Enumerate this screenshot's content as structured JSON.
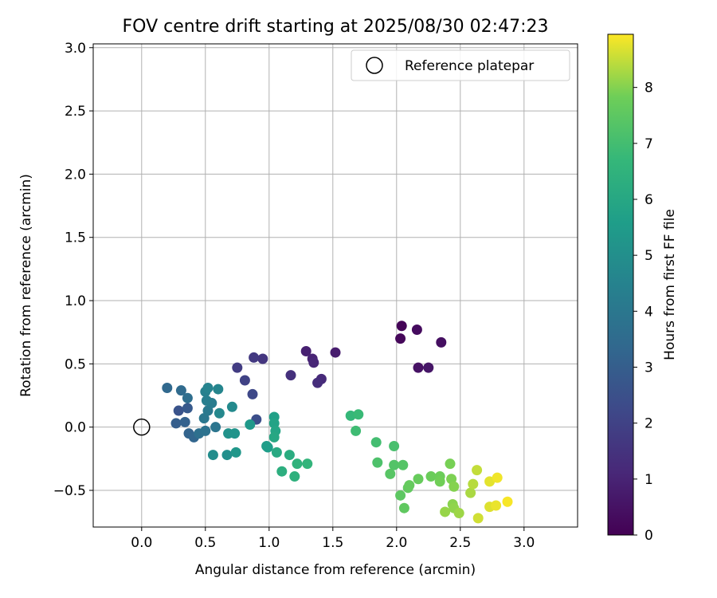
{
  "chart_data": {
    "type": "scatter",
    "title": "FOV centre drift starting at 2025/08/30 02:47:23",
    "xlabel": "Angular distance from reference (arcmin)",
    "ylabel": "Rotation from reference (arcmin)",
    "xlim": [
      -0.38,
      3.42
    ],
    "ylim": [
      -0.79,
      3.03
    ],
    "xticks": [
      0.0,
      0.5,
      1.0,
      1.5,
      2.0,
      2.5,
      3.0
    ],
    "xtick_labels": [
      "0.0",
      "0.5",
      "1.0",
      "1.5",
      "2.0",
      "2.5",
      "3.0"
    ],
    "yticks": [
      -0.5,
      0.0,
      0.5,
      1.0,
      1.5,
      2.0,
      2.5,
      3.0
    ],
    "ytick_labels": [
      "−0.5",
      "0.0",
      "0.5",
      "1.0",
      "1.5",
      "2.0",
      "2.5",
      "3.0"
    ],
    "grid": true,
    "legend": {
      "position": "top-right",
      "label": "Reference platepar"
    },
    "reference_point": {
      "x": 0.0,
      "y": 0.0
    },
    "colorbar": {
      "label": "Hours from first FF file",
      "min": 0,
      "max": 8.95,
      "ticks": [
        0,
        1,
        2,
        3,
        4,
        5,
        6,
        7,
        8
      ],
      "tick_labels": [
        "0",
        "1",
        "2",
        "3",
        "4",
        "5",
        "6",
        "7",
        "8"
      ],
      "colormap": "viridis"
    },
    "points": [
      {
        "x": 2.04,
        "y": 0.8,
        "c": 0.1
      },
      {
        "x": 2.03,
        "y": 0.7,
        "c": 0.2
      },
      {
        "x": 2.16,
        "y": 0.77,
        "c": 0.3
      },
      {
        "x": 2.35,
        "y": 0.67,
        "c": 0.4
      },
      {
        "x": 2.17,
        "y": 0.47,
        "c": 0.5
      },
      {
        "x": 2.25,
        "y": 0.47,
        "c": 0.6
      },
      {
        "x": 1.52,
        "y": 0.59,
        "c": 0.8
      },
      {
        "x": 1.29,
        "y": 0.6,
        "c": 0.9
      },
      {
        "x": 1.34,
        "y": 0.54,
        "c": 1.0
      },
      {
        "x": 1.35,
        "y": 0.51,
        "c": 1.1
      },
      {
        "x": 1.41,
        "y": 0.38,
        "c": 1.2
      },
      {
        "x": 1.38,
        "y": 0.35,
        "c": 1.3
      },
      {
        "x": 1.17,
        "y": 0.41,
        "c": 1.4
      },
      {
        "x": 0.95,
        "y": 0.54,
        "c": 1.6
      },
      {
        "x": 0.88,
        "y": 0.55,
        "c": 1.7
      },
      {
        "x": 0.75,
        "y": 0.47,
        "c": 1.8
      },
      {
        "x": 0.81,
        "y": 0.37,
        "c": 2.0
      },
      {
        "x": 0.87,
        "y": 0.26,
        "c": 2.2
      },
      {
        "x": 0.9,
        "y": 0.06,
        "c": 2.4
      },
      {
        "x": 0.29,
        "y": 0.13,
        "c": 2.6
      },
      {
        "x": 0.36,
        "y": 0.15,
        "c": 2.8
      },
      {
        "x": 0.27,
        "y": 0.03,
        "c": 3.0
      },
      {
        "x": 0.34,
        "y": 0.04,
        "c": 3.1
      },
      {
        "x": 0.37,
        "y": -0.05,
        "c": 3.2
      },
      {
        "x": 0.41,
        "y": -0.08,
        "c": 3.3
      },
      {
        "x": 0.2,
        "y": 0.31,
        "c": 3.4
      },
      {
        "x": 0.31,
        "y": 0.29,
        "c": 3.5
      },
      {
        "x": 0.36,
        "y": 0.23,
        "c": 3.6
      },
      {
        "x": 0.45,
        "y": -0.05,
        "c": 3.7
      },
      {
        "x": 0.5,
        "y": -0.03,
        "c": 3.8
      },
      {
        "x": 0.58,
        "y": 0.0,
        "c": 3.9
      },
      {
        "x": 0.49,
        "y": 0.07,
        "c": 4.0
      },
      {
        "x": 0.52,
        "y": 0.13,
        "c": 4.1
      },
      {
        "x": 0.55,
        "y": 0.19,
        "c": 4.2
      },
      {
        "x": 0.51,
        "y": 0.21,
        "c": 4.3
      },
      {
        "x": 0.5,
        "y": 0.28,
        "c": 4.4
      },
      {
        "x": 0.52,
        "y": 0.31,
        "c": 4.5
      },
      {
        "x": 0.6,
        "y": 0.3,
        "c": 4.6
      },
      {
        "x": 0.61,
        "y": 0.11,
        "c": 4.7
      },
      {
        "x": 0.71,
        "y": 0.16,
        "c": 4.8
      },
      {
        "x": 0.56,
        "y": -0.22,
        "c": 4.9
      },
      {
        "x": 0.67,
        "y": -0.22,
        "c": 5.0
      },
      {
        "x": 0.68,
        "y": -0.05,
        "c": 5.1
      },
      {
        "x": 0.73,
        "y": -0.05,
        "c": 5.2
      },
      {
        "x": 0.74,
        "y": -0.2,
        "c": 5.3
      },
      {
        "x": 0.85,
        "y": 0.02,
        "c": 5.4
      },
      {
        "x": 0.98,
        "y": -0.15,
        "c": 5.5
      },
      {
        "x": 0.99,
        "y": -0.16,
        "c": 5.6
      },
      {
        "x": 1.04,
        "y": 0.08,
        "c": 5.7
      },
      {
        "x": 1.04,
        "y": 0.03,
        "c": 5.8
      },
      {
        "x": 1.05,
        "y": -0.03,
        "c": 5.9
      },
      {
        "x": 1.04,
        "y": -0.08,
        "c": 6.0
      },
      {
        "x": 1.06,
        "y": -0.2,
        "c": 6.1
      },
      {
        "x": 1.16,
        "y": -0.22,
        "c": 6.2
      },
      {
        "x": 1.1,
        "y": -0.35,
        "c": 6.3
      },
      {
        "x": 1.2,
        "y": -0.39,
        "c": 6.4
      },
      {
        "x": 1.22,
        "y": -0.29,
        "c": 6.5
      },
      {
        "x": 1.3,
        "y": -0.29,
        "c": 6.6
      },
      {
        "x": 1.64,
        "y": 0.09,
        "c": 6.7
      },
      {
        "x": 1.7,
        "y": 0.1,
        "c": 6.8
      },
      {
        "x": 1.68,
        "y": -0.03,
        "c": 6.9
      },
      {
        "x": 1.84,
        "y": -0.12,
        "c": 7.0
      },
      {
        "x": 1.98,
        "y": -0.15,
        "c": 7.1
      },
      {
        "x": 1.85,
        "y": -0.28,
        "c": 7.2
      },
      {
        "x": 1.98,
        "y": -0.3,
        "c": 7.3
      },
      {
        "x": 2.05,
        "y": -0.3,
        "c": 7.35
      },
      {
        "x": 1.95,
        "y": -0.37,
        "c": 7.4
      },
      {
        "x": 2.03,
        "y": -0.54,
        "c": 7.5
      },
      {
        "x": 2.06,
        "y": -0.64,
        "c": 7.55
      },
      {
        "x": 2.09,
        "y": -0.48,
        "c": 7.6
      },
      {
        "x": 2.1,
        "y": -0.46,
        "c": 7.65
      },
      {
        "x": 2.17,
        "y": -0.41,
        "c": 7.7
      },
      {
        "x": 2.27,
        "y": -0.39,
        "c": 7.75
      },
      {
        "x": 2.34,
        "y": -0.39,
        "c": 7.8
      },
      {
        "x": 2.34,
        "y": -0.43,
        "c": 7.85
      },
      {
        "x": 2.42,
        "y": -0.29,
        "c": 7.9
      },
      {
        "x": 2.43,
        "y": -0.41,
        "c": 7.95
      },
      {
        "x": 2.45,
        "y": -0.47,
        "c": 8.0
      },
      {
        "x": 2.44,
        "y": -0.61,
        "c": 8.05
      },
      {
        "x": 2.45,
        "y": -0.64,
        "c": 8.1
      },
      {
        "x": 2.38,
        "y": -0.67,
        "c": 8.15
      },
      {
        "x": 2.49,
        "y": -0.68,
        "c": 8.2
      },
      {
        "x": 2.58,
        "y": -0.52,
        "c": 8.3
      },
      {
        "x": 2.6,
        "y": -0.45,
        "c": 8.4
      },
      {
        "x": 2.63,
        "y": -0.34,
        "c": 8.5
      },
      {
        "x": 2.64,
        "y": -0.72,
        "c": 8.6
      },
      {
        "x": 2.73,
        "y": -0.63,
        "c": 8.7
      },
      {
        "x": 2.73,
        "y": -0.43,
        "c": 8.75
      },
      {
        "x": 2.78,
        "y": -0.62,
        "c": 8.8
      },
      {
        "x": 2.79,
        "y": -0.4,
        "c": 8.85
      },
      {
        "x": 2.87,
        "y": -0.59,
        "c": 8.9
      }
    ]
  }
}
